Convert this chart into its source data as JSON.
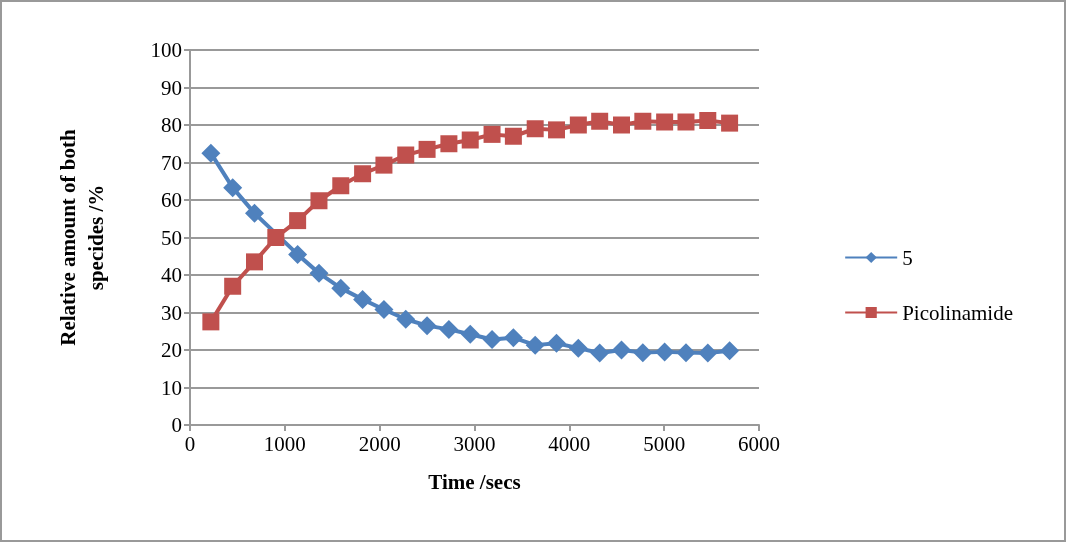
{
  "chart_data": {
    "type": "line",
    "xlabel": "Time /secs",
    "ylabel": "Relative amount of both\nspecides /%",
    "x": [
      220,
      450,
      680,
      905,
      1135,
      1360,
      1590,
      1820,
      2045,
      2275,
      2500,
      2730,
      2955,
      3185,
      3410,
      3640,
      3865,
      4095,
      4320,
      4550,
      4775,
      5005,
      5230,
      5460,
      5690
    ],
    "series": [
      {
        "name": "5",
        "color": "#4f81bd",
        "marker": "diamond",
        "values": [
          72.5,
          63.3,
          56.5,
          null,
          45.5,
          40.5,
          36.5,
          33.5,
          30.8,
          28.2,
          26.5,
          25.5,
          24.2,
          22.8,
          23.3,
          21.3,
          21.8,
          20.5,
          19.2,
          20,
          19.3,
          19.5,
          19.3,
          19.2,
          19.8
        ]
      },
      {
        "name": "Picolinamide",
        "color": "#c0504d",
        "marker": "square",
        "values": [
          27.5,
          37,
          43.5,
          50,
          54.5,
          59.8,
          63.8,
          67,
          69.3,
          72,
          73.5,
          75,
          76,
          77.5,
          77,
          79,
          78.7,
          80,
          81,
          80,
          81,
          80.8,
          80.8,
          81.2,
          80.5
        ]
      }
    ],
    "xlim": [
      0,
      6000
    ],
    "xticks": [
      0,
      1000,
      2000,
      3000,
      4000,
      5000,
      6000
    ],
    "ylim": [
      0,
      100
    ],
    "yticks": [
      0,
      10,
      20,
      30,
      40,
      50,
      60,
      70,
      80,
      90,
      100
    ],
    "grid": "y",
    "legend": "right"
  }
}
